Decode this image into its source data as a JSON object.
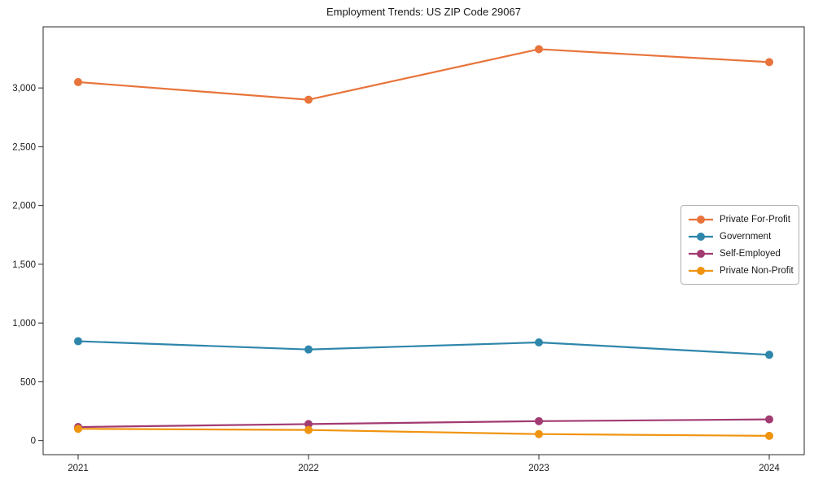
{
  "page": {
    "background": "#ffffff",
    "text_color": "#1a1a1a",
    "axis_color": "#2a2a2a"
  },
  "chart_data": {
    "type": "line",
    "title": "Employment Trends: US ZIP Code 29067",
    "xlabel": "",
    "ylabel": "",
    "x": [
      2021,
      2022,
      2023,
      2024
    ],
    "x_tick_labels": [
      "2021",
      "2022",
      "2023",
      "2024"
    ],
    "series": [
      {
        "name": "Private For-Profit",
        "color": "#e8743b",
        "values": [
          3050,
          2900,
          3330,
          3220
        ]
      },
      {
        "name": "Government",
        "color": "#2e86ab",
        "values": [
          845,
          775,
          835,
          730
        ]
      },
      {
        "name": "Self-Employed",
        "color": "#a23b72",
        "values": [
          115,
          140,
          165,
          180
        ]
      },
      {
        "name": "Private Non-Profit",
        "color": "#f09410",
        "values": [
          100,
          90,
          55,
          40
        ]
      }
    ],
    "ylim": [
      -120,
      3520
    ],
    "yticks": [
      0,
      500,
      1000,
      1500,
      2000,
      2500,
      3000
    ],
    "ytick_labels": [
      "0",
      "500",
      "1,000",
      "1,500",
      "2,000",
      "2,500",
      "3,000"
    ],
    "grid": false,
    "marker": "circle",
    "legend_position": "center right"
  }
}
